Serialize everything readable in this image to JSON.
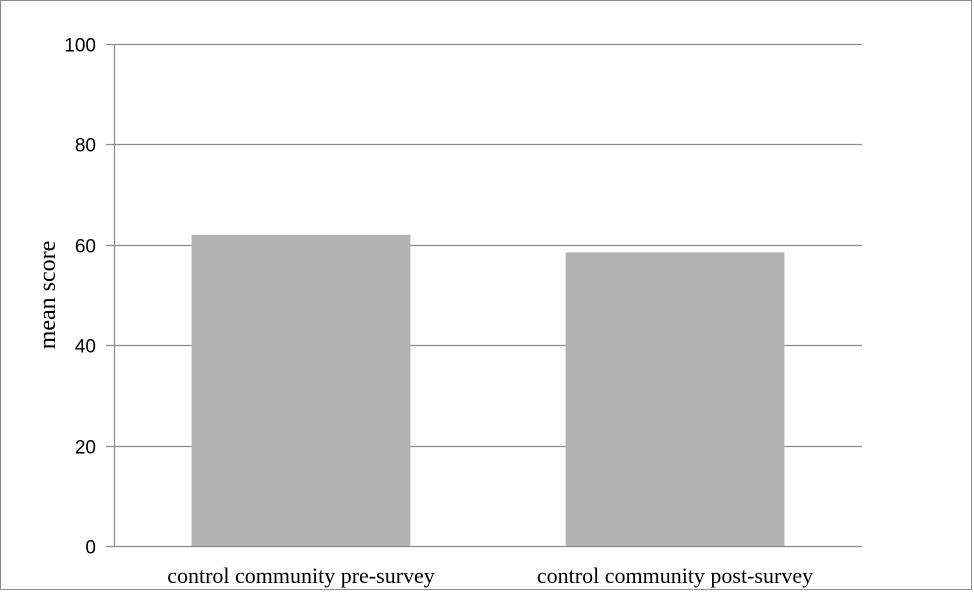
{
  "chart_data": {
    "type": "bar",
    "categories": [
      "control community pre-survey",
      "control community post-survey"
    ],
    "values": [
      62,
      58.5
    ],
    "title": "",
    "xlabel": "",
    "ylabel": "mean score",
    "ylim": [
      0,
      100
    ],
    "yticks": [
      0,
      20,
      40,
      60,
      80,
      100
    ],
    "grid": true,
    "legend": "none"
  },
  "colors": {
    "bar": "#b3b3b3",
    "grid": "#8c8c8c",
    "axis": "#8c8c8c",
    "frame": "#8c8c8c"
  }
}
